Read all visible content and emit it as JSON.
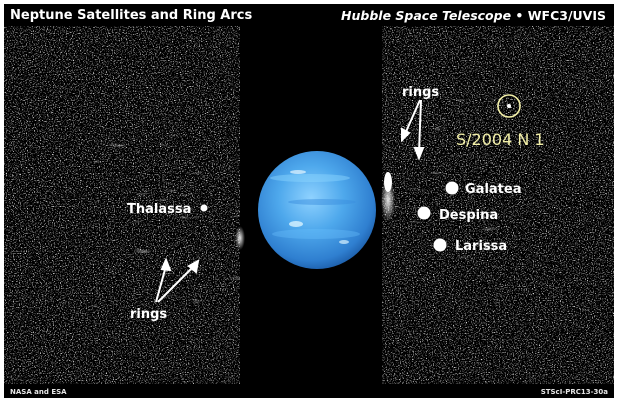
{
  "header": {
    "title": "Neptune Satellites and Ring Arcs",
    "instrument_italic": "Hubble Space Telescope",
    "instrument_rest": " • WFC3/UVIS"
  },
  "labels": {
    "thalassa": "Thalassa",
    "rings_left": "rings",
    "rings_right": "rings",
    "new_moon": "S/2004 N 1",
    "galatea": "Galatea",
    "despina": "Despina",
    "larissa": "Larissa"
  },
  "footer": {
    "credit": "NASA and ESA",
    "image_id": "STScI-PRC13-30a"
  },
  "colors": {
    "background": "#000000",
    "planet": "#4b9fe3",
    "label": "#ffffff",
    "highlight": "#f3f0a8"
  }
}
